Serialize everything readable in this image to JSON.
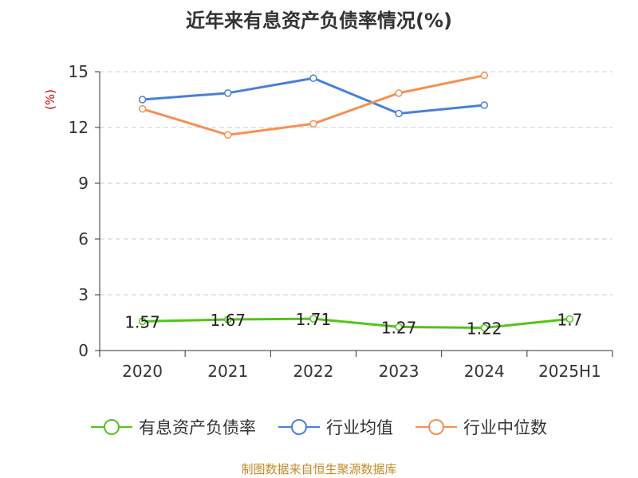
{
  "title": "近年来有息资产负债率情况(%)",
  "source": "制图数据来自恒生聚源数据库",
  "chart_data": {
    "type": "line",
    "title": "近年来有息资产负债率情况(%)",
    "ylabel": "(%)",
    "xlabel": "",
    "categories": [
      "2020",
      "2021",
      "2022",
      "2023",
      "2024",
      "2025H1"
    ],
    "ylim": [
      0,
      15
    ],
    "yticks": [
      0,
      3,
      6,
      9,
      12,
      15
    ],
    "grid": true,
    "legend_position": "bottom",
    "series": [
      {
        "name": "有息资产负债率",
        "color": "#52c41a",
        "values": [
          1.57,
          1.67,
          1.71,
          1.27,
          1.22,
          1.7
        ],
        "labels": [
          "1.57",
          "1.67",
          "1.71",
          "1.27",
          "1.22",
          "1.7"
        ]
      },
      {
        "name": "行业均值",
        "color": "#4a7fd8",
        "values": [
          13.5,
          13.85,
          14.65,
          12.75,
          13.2,
          null
        ]
      },
      {
        "name": "行业中位数",
        "color": "#f79052",
        "values": [
          13.0,
          11.6,
          12.2,
          13.85,
          14.8,
          null
        ]
      }
    ]
  }
}
